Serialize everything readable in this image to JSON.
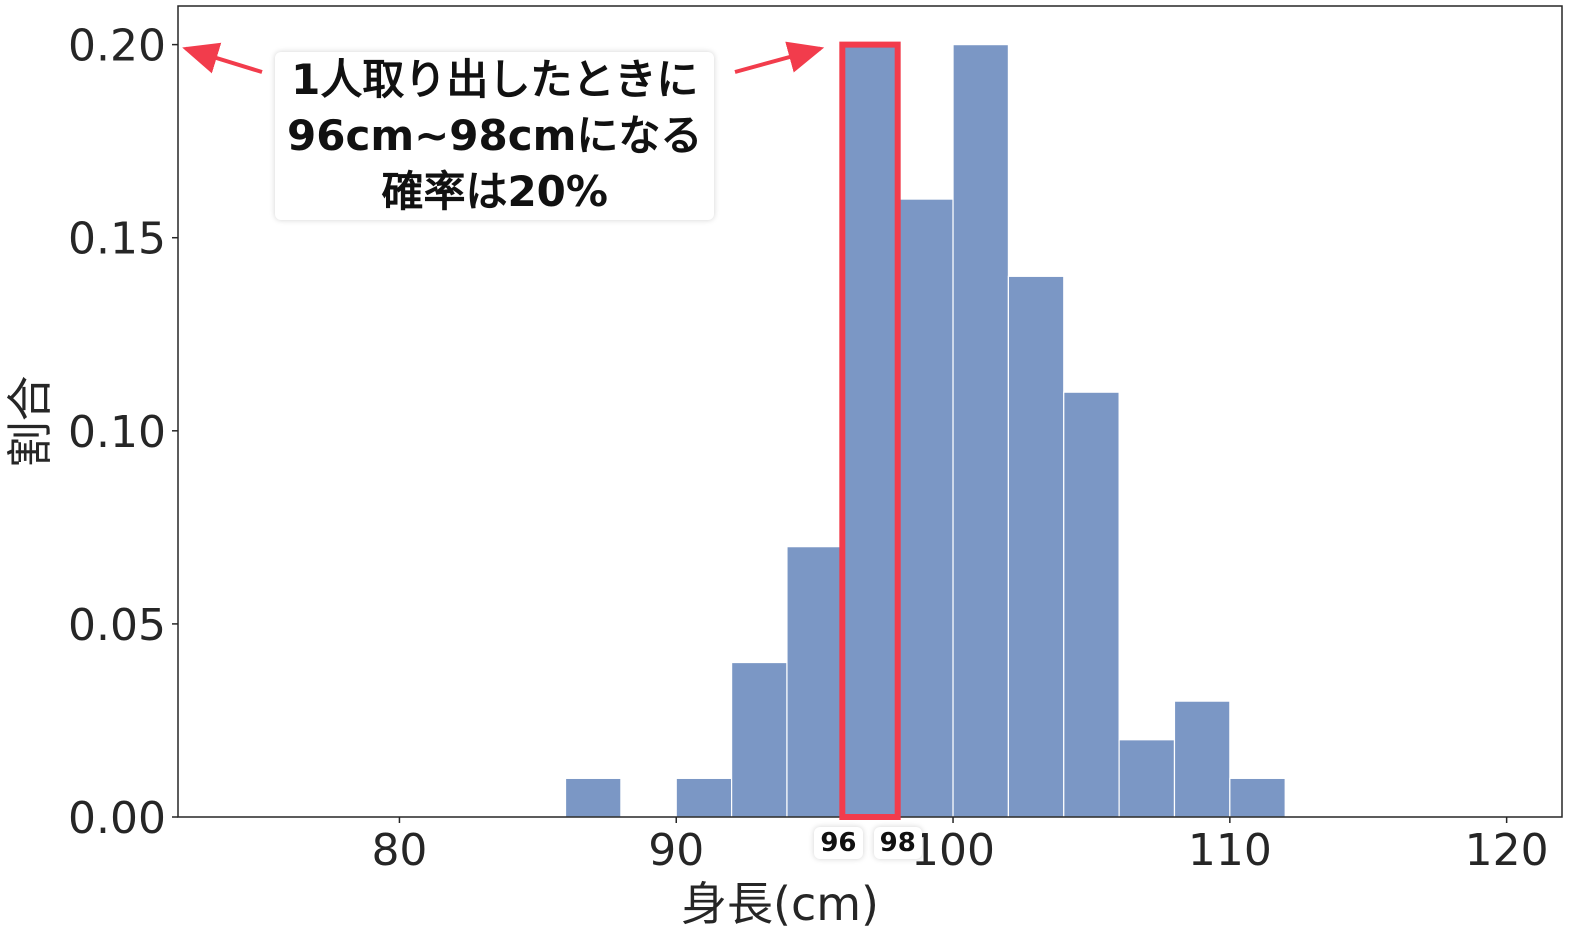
{
  "chart_data": {
    "type": "bar",
    "bin_edges": [
      86,
      88,
      90,
      92,
      94,
      96,
      98,
      100,
      102,
      104,
      106,
      108,
      110,
      112
    ],
    "values": [
      0.01,
      0.0,
      0.01,
      0.04,
      0.07,
      0.2,
      0.16,
      0.2,
      0.14,
      0.11,
      0.02,
      0.03,
      0.01
    ],
    "xlim": [
      72,
      122
    ],
    "ylim": [
      0,
      0.21
    ],
    "x_ticks": [
      {
        "value": 80,
        "label": "80"
      },
      {
        "value": 90,
        "label": "90"
      },
      {
        "value": 100,
        "label": "100"
      },
      {
        "value": 110,
        "label": "110"
      },
      {
        "value": 120,
        "label": "120"
      }
    ],
    "y_ticks": [
      {
        "value": 0.0,
        "label": "0.00"
      },
      {
        "value": 0.05,
        "label": "0.05"
      },
      {
        "value": 0.1,
        "label": "0.10"
      },
      {
        "value": 0.15,
        "label": "0.15"
      },
      {
        "value": 0.2,
        "label": "0.20"
      }
    ],
    "xlabel": "身長(cm)",
    "ylabel": "割合",
    "bar_color": "#7b97c5",
    "highlight": {
      "from": 96,
      "to": 98,
      "color": "#f23c4c"
    },
    "annotation": {
      "lines": [
        "1人取り出したときに",
        "96cm~98cmになる",
        "確率は20%"
      ]
    },
    "edge_labels": [
      "96",
      "98"
    ],
    "grid": false
  }
}
